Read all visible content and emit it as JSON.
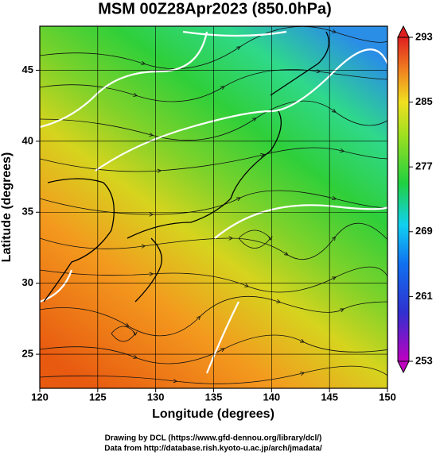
{
  "map": {
    "title": "MSM 00Z28Apr2023 (850.0hPa)",
    "xaxis": {
      "label": "Longitude (degrees)",
      "lim": [
        120,
        150
      ],
      "ticks": [
        120,
        125,
        130,
        135,
        140,
        145,
        150
      ]
    },
    "yaxis": {
      "label": "Latitude  (degrees)",
      "lim": [
        22.6,
        48.1
      ],
      "ticks": [
        25,
        30,
        35,
        40,
        45
      ]
    },
    "colorbar": {
      "lim": [
        253,
        293
      ],
      "ticks": [
        253,
        261,
        269,
        277,
        285,
        293
      ]
    },
    "credits": [
      "Drawing by DCL (https://www.gfd-dennou.org/library/dcl/)",
      "Data from http://database.rish.kyoto-u.ac.jp/arch/jmadata/"
    ]
  }
}
